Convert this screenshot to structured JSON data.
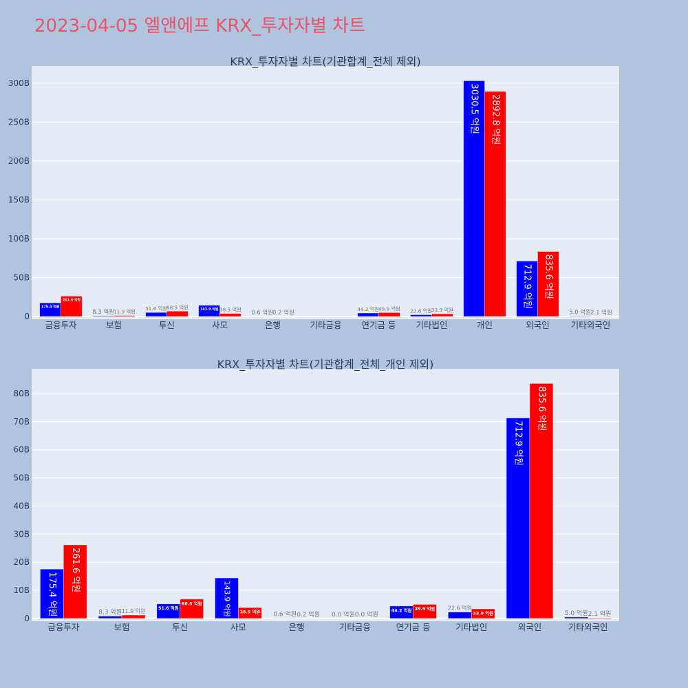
{
  "page": {
    "title": "2023-04-05 엘앤에프 KRX_투자자별 차트"
  },
  "colors": {
    "background": "#B0C4DE",
    "plot_bg": "#E5ECF6",
    "title": "#E9546B",
    "axis_text": "#2a3f5f",
    "outside_label": "#777777",
    "inside_label": "#FFFFFF",
    "grid": "#FFFFFF"
  },
  "chart_data": [
    {
      "type": "bar",
      "title": "KRX_투자자별 차트(기관합계_전체 제외)",
      "xlabel": "",
      "ylabel": "",
      "value_unit": "억원",
      "axis_unit": "B",
      "categories": [
        "금융투자",
        "보험",
        "투신",
        "사모",
        "은행",
        "기타금융",
        "연기금 등",
        "기타법인",
        "개인",
        "외국인",
        "기타외국인"
      ],
      "series": [
        {
          "name": "series-blue",
          "color": "#0000FF",
          "values": [
            175.4,
            8.3,
            51.6,
            143.9,
            0.6,
            0.0,
            44.2,
            22.6,
            3030.5,
            712.9,
            5.0
          ],
          "labels": [
            "175.4 억원",
            "8.3 억원",
            "51.6 억원",
            "143.9 억원",
            "0.6 억원",
            "",
            "44.2 억원",
            "22.6 억원",
            "3030.5 억원",
            "712.9 억원",
            "5.0 억원"
          ]
        },
        {
          "name": "series-red",
          "color": "#FF0000",
          "values": [
            261.6,
            11.9,
            68.5,
            38.5,
            0.2,
            0.0,
            49.9,
            33.9,
            2892.8,
            835.6,
            2.1
          ],
          "labels": [
            "261.6 억원",
            "11.9 억원",
            "68.5 억원",
            "38.5 억원",
            "0.2 억원",
            "",
            "49.9 억원",
            "33.9 억원",
            "2892.8 억원",
            "835.6 억원",
            "2.1 억원"
          ]
        }
      ],
      "yticks": [
        0,
        50,
        100,
        150,
        200,
        250,
        300
      ],
      "ytick_labels": [
        "0",
        "50B",
        "100B",
        "150B",
        "200B",
        "250B",
        "300B"
      ],
      "ylim": [
        -3.5,
        322
      ],
      "grid": true,
      "legend": false
    },
    {
      "type": "bar",
      "title": "KRX_투자자별 차트(기관합계_전체_개인 제외)",
      "xlabel": "",
      "ylabel": "",
      "value_unit": "억원",
      "axis_unit": "B",
      "categories": [
        "금융투자",
        "보험",
        "투신",
        "사모",
        "은행",
        "기타금융",
        "연기금 등",
        "기타법인",
        "외국인",
        "기타외국인"
      ],
      "series": [
        {
          "name": "series-blue",
          "color": "#0000FF",
          "values": [
            175.4,
            8.3,
            51.6,
            143.9,
            0.6,
            0.0,
            44.2,
            22.6,
            712.9,
            5.0
          ],
          "labels": [
            "175.4 억원",
            "8.3 억원",
            "51.6 억원",
            "143.9 억원",
            "0.6 억원",
            "0.0 억원",
            "44.2 억원",
            "22.6 억원",
            "712.9 억원",
            "5.0 억원"
          ]
        },
        {
          "name": "series-red",
          "color": "#FF0000",
          "values": [
            261.6,
            11.9,
            68.5,
            38.5,
            0.2,
            0.0,
            49.9,
            33.9,
            835.6,
            2.1
          ],
          "labels": [
            "261.6 억원",
            "11.9 억원",
            "68.5 억원",
            "38.5 억원",
            "0.2 억원",
            "0.0 억원",
            "49.9 억원",
            "33.9 억원",
            "835.6 억원",
            "2.1 억원"
          ]
        }
      ],
      "yticks": [
        0,
        10,
        20,
        30,
        40,
        50,
        60,
        70,
        80
      ],
      "ytick_labels": [
        "0",
        "10B",
        "20B",
        "30B",
        "40B",
        "50B",
        "60B",
        "70B",
        "80B"
      ],
      "ylim": [
        -1,
        88.8
      ],
      "grid": true,
      "legend": false
    }
  ]
}
